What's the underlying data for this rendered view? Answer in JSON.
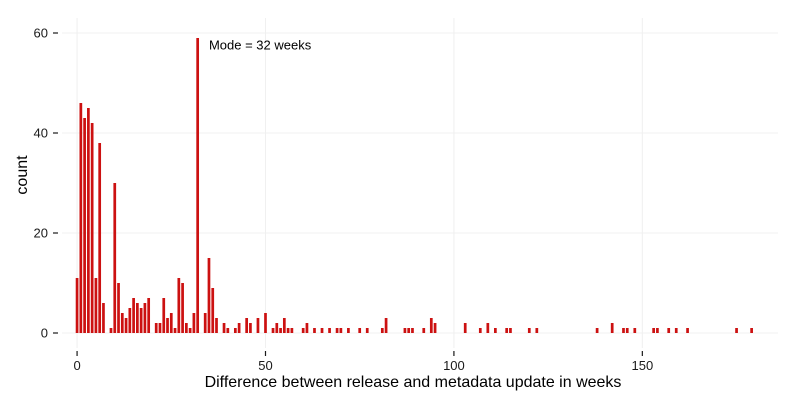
{
  "chart_data": {
    "type": "bar",
    "xlabel": "Difference between release and metadata update in weeks",
    "ylabel": "count",
    "xlim": [
      -4,
      186
    ],
    "ylim": [
      -3,
      63
    ],
    "x_ticks": [
      0,
      50,
      100,
      150
    ],
    "y_ticks": [
      0,
      20,
      40,
      60
    ],
    "x_tick_labels": [
      "0",
      "50",
      "100",
      "150"
    ],
    "y_tick_labels": [
      "0",
      "20",
      "40",
      "60"
    ],
    "grid": true,
    "bar_color": "#cc1111",
    "annotation": {
      "text": "Mode = 32 weeks",
      "x": 35,
      "y": 57.5
    },
    "bins": [
      {
        "x": 0,
        "count": 11
      },
      {
        "x": 1,
        "count": 46
      },
      {
        "x": 2,
        "count": 43
      },
      {
        "x": 3,
        "count": 45
      },
      {
        "x": 4,
        "count": 42
      },
      {
        "x": 5,
        "count": 11
      },
      {
        "x": 6,
        "count": 38
      },
      {
        "x": 7,
        "count": 6
      },
      {
        "x": 9,
        "count": 1
      },
      {
        "x": 10,
        "count": 30
      },
      {
        "x": 11,
        "count": 10
      },
      {
        "x": 12,
        "count": 4
      },
      {
        "x": 13,
        "count": 3
      },
      {
        "x": 14,
        "count": 5
      },
      {
        "x": 15,
        "count": 7
      },
      {
        "x": 16,
        "count": 6
      },
      {
        "x": 17,
        "count": 5
      },
      {
        "x": 18,
        "count": 6
      },
      {
        "x": 19,
        "count": 7
      },
      {
        "x": 21,
        "count": 2
      },
      {
        "x": 22,
        "count": 2
      },
      {
        "x": 23,
        "count": 7
      },
      {
        "x": 24,
        "count": 3
      },
      {
        "x": 25,
        "count": 4
      },
      {
        "x": 26,
        "count": 1
      },
      {
        "x": 27,
        "count": 11
      },
      {
        "x": 28,
        "count": 10
      },
      {
        "x": 29,
        "count": 2
      },
      {
        "x": 30,
        "count": 1
      },
      {
        "x": 31,
        "count": 4
      },
      {
        "x": 32,
        "count": 59
      },
      {
        "x": 34,
        "count": 4
      },
      {
        "x": 35,
        "count": 15
      },
      {
        "x": 36,
        "count": 9
      },
      {
        "x": 37,
        "count": 3
      },
      {
        "x": 39,
        "count": 2
      },
      {
        "x": 40,
        "count": 1
      },
      {
        "x": 42,
        "count": 1
      },
      {
        "x": 43,
        "count": 2
      },
      {
        "x": 45,
        "count": 3
      },
      {
        "x": 46,
        "count": 2
      },
      {
        "x": 48,
        "count": 3
      },
      {
        "x": 50,
        "count": 4
      },
      {
        "x": 52,
        "count": 1
      },
      {
        "x": 53,
        "count": 2
      },
      {
        "x": 54,
        "count": 1
      },
      {
        "x": 55,
        "count": 3
      },
      {
        "x": 56,
        "count": 1
      },
      {
        "x": 57,
        "count": 1
      },
      {
        "x": 60,
        "count": 1
      },
      {
        "x": 61,
        "count": 2
      },
      {
        "x": 63,
        "count": 1
      },
      {
        "x": 65,
        "count": 1
      },
      {
        "x": 67,
        "count": 1
      },
      {
        "x": 69,
        "count": 1
      },
      {
        "x": 70,
        "count": 1
      },
      {
        "x": 72,
        "count": 1
      },
      {
        "x": 75,
        "count": 1
      },
      {
        "x": 77,
        "count": 1
      },
      {
        "x": 81,
        "count": 1
      },
      {
        "x": 82,
        "count": 3
      },
      {
        "x": 87,
        "count": 1
      },
      {
        "x": 88,
        "count": 1
      },
      {
        "x": 89,
        "count": 1
      },
      {
        "x": 92,
        "count": 1
      },
      {
        "x": 94,
        "count": 3
      },
      {
        "x": 95,
        "count": 2
      },
      {
        "x": 103,
        "count": 2
      },
      {
        "x": 107,
        "count": 1
      },
      {
        "x": 109,
        "count": 2
      },
      {
        "x": 111,
        "count": 1
      },
      {
        "x": 114,
        "count": 1
      },
      {
        "x": 115,
        "count": 1
      },
      {
        "x": 120,
        "count": 1
      },
      {
        "x": 122,
        "count": 1
      },
      {
        "x": 138,
        "count": 1
      },
      {
        "x": 142,
        "count": 2
      },
      {
        "x": 145,
        "count": 1
      },
      {
        "x": 146,
        "count": 1
      },
      {
        "x": 148,
        "count": 1
      },
      {
        "x": 153,
        "count": 1
      },
      {
        "x": 154,
        "count": 1
      },
      {
        "x": 157,
        "count": 1
      },
      {
        "x": 159,
        "count": 1
      },
      {
        "x": 162,
        "count": 1
      },
      {
        "x": 175,
        "count": 1
      },
      {
        "x": 179,
        "count": 1
      }
    ]
  }
}
